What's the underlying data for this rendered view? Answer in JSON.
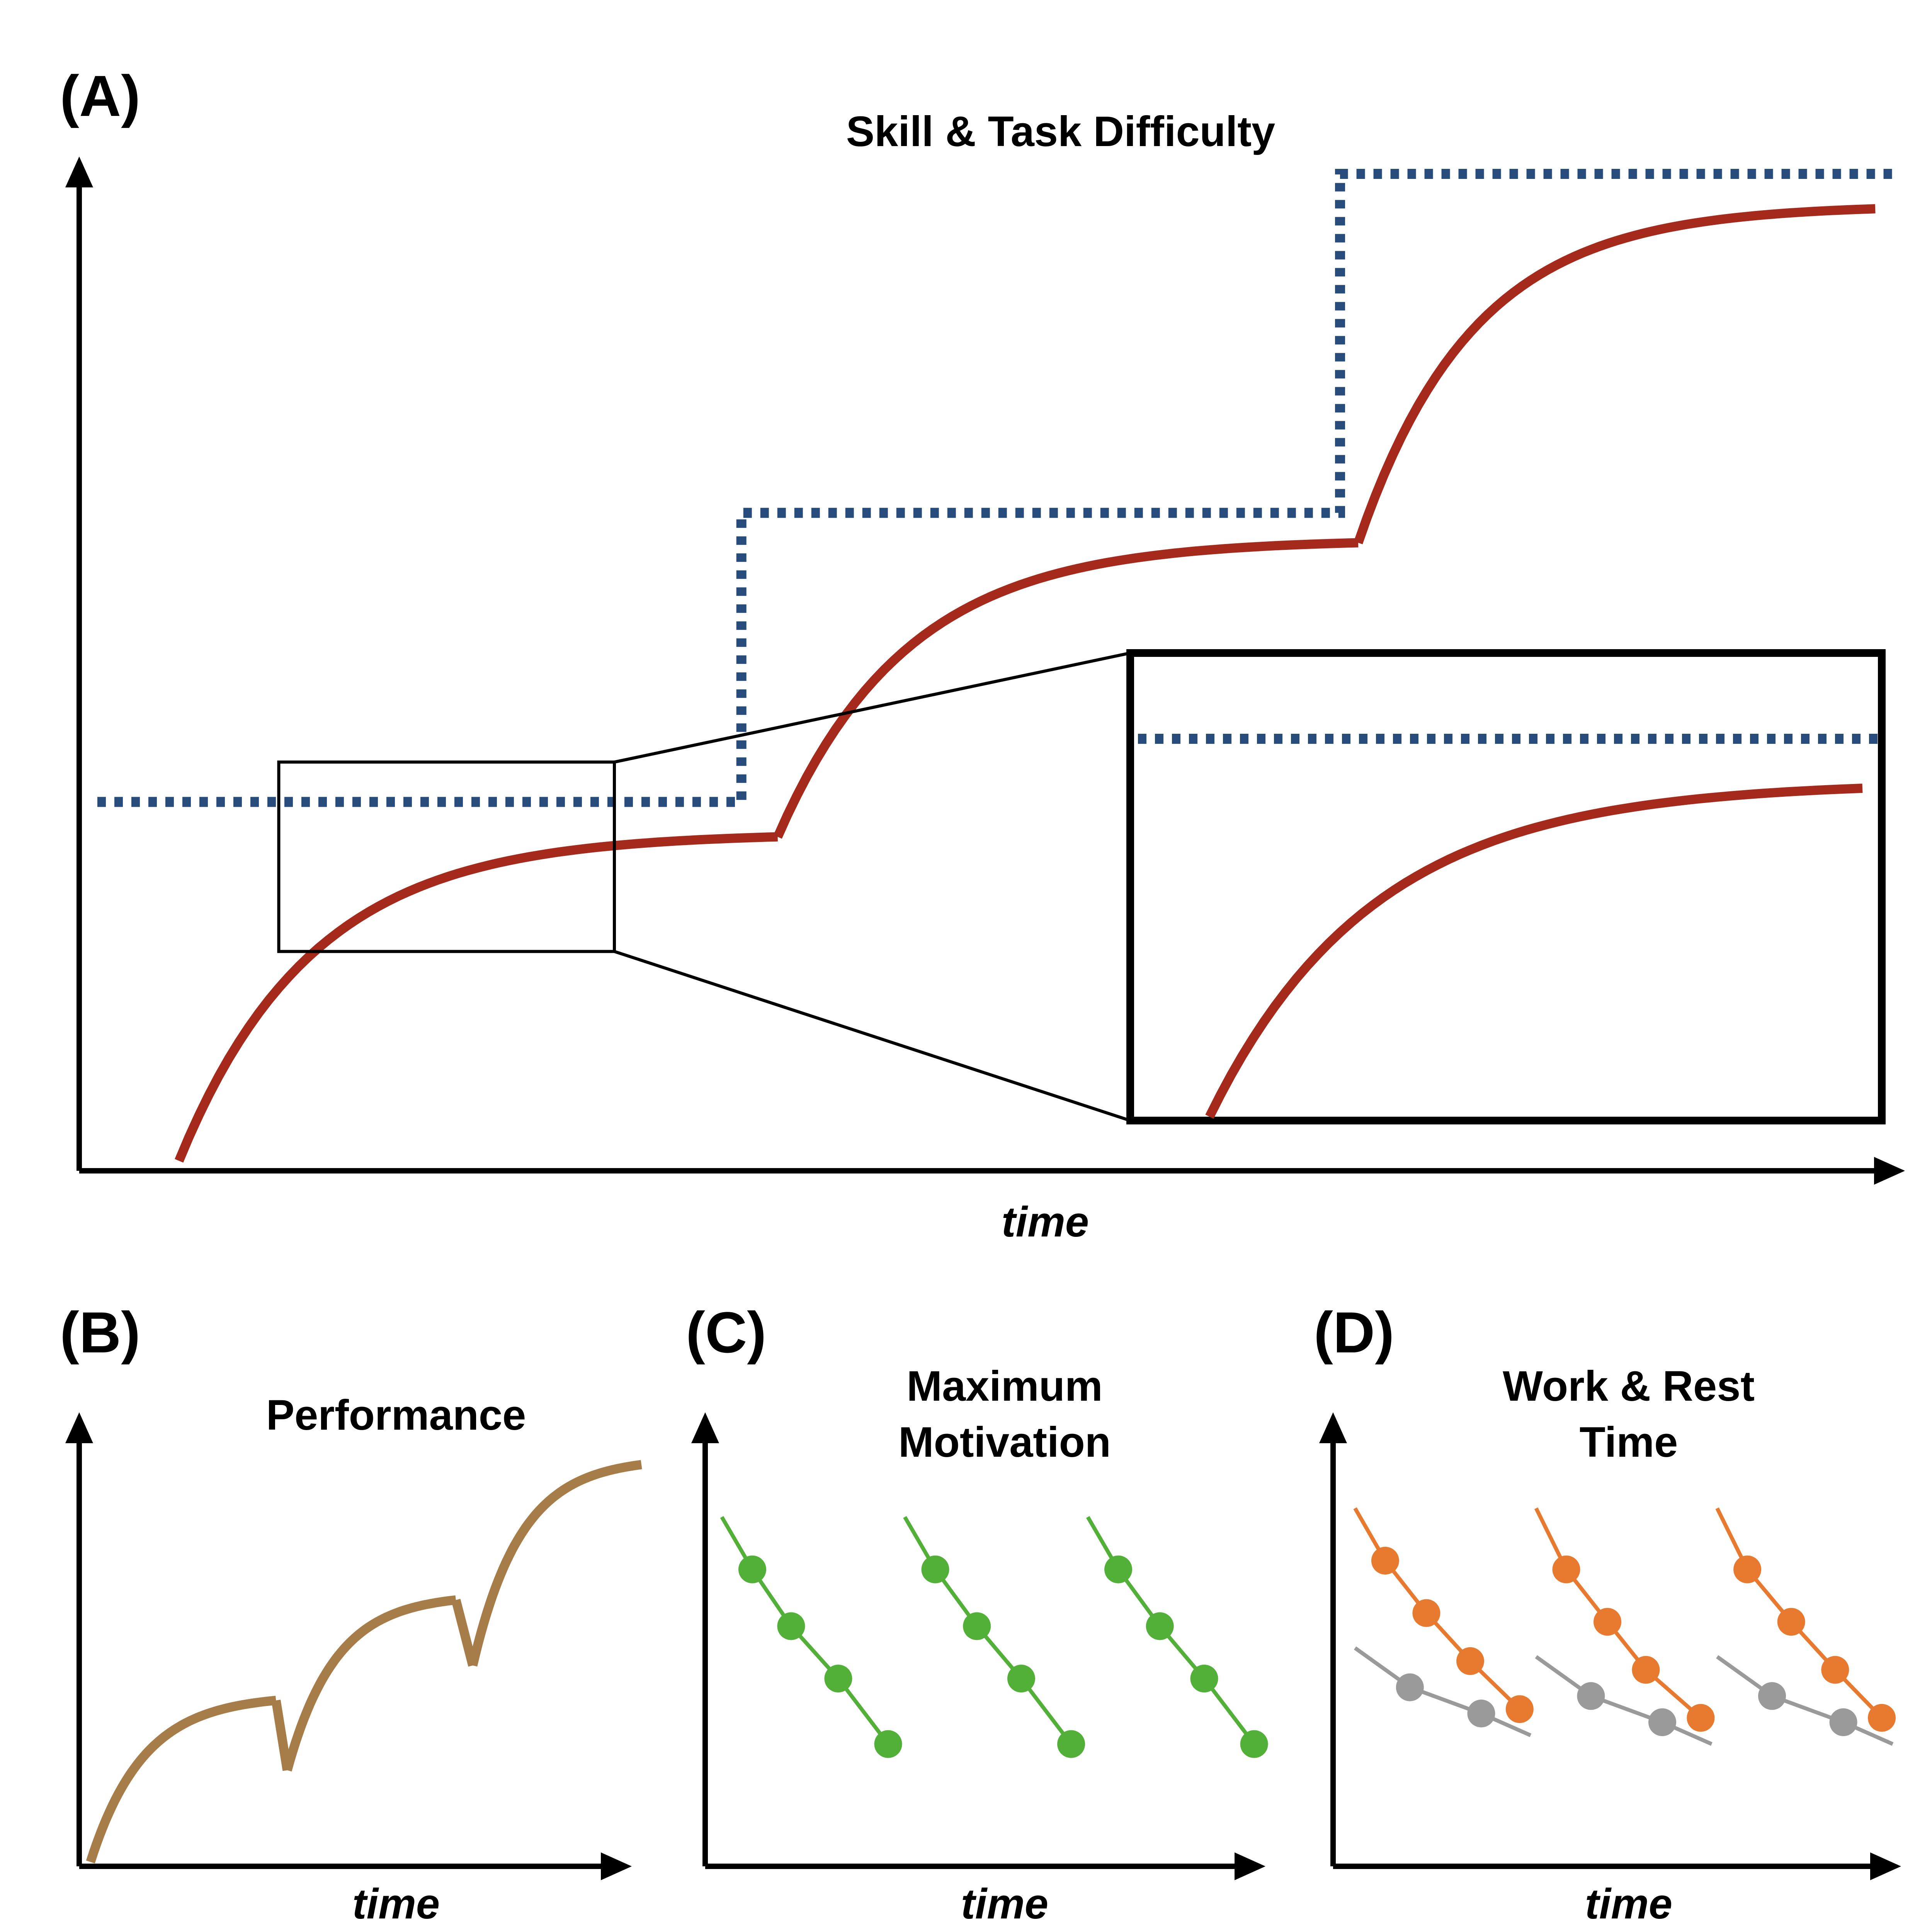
{
  "colors": {
    "skill": "#a52a1c",
    "difficulty": "#274b7a",
    "performance": "#a67c48",
    "motivation": "#52b038",
    "work": "#e87a30",
    "rest": "#9a9a9a",
    "axis": "#000000"
  },
  "chart_data": [
    {
      "panel": "(A)",
      "type": "line",
      "title": "Skill & Task Difficulty",
      "xlabel": "time",
      "ylabel": "",
      "xlim": [
        0,
        100
      ],
      "ylim": [
        0,
        100
      ],
      "series": [
        {
          "name": "Skill",
          "style": "solid",
          "color_key": "skill",
          "segments": [
            {
              "start": [
                5.5,
                1
              ],
              "end": [
                38.5,
                33.5
              ],
              "curve": "concave-saturating"
            },
            {
              "start": [
                38.5,
                33.5
              ],
              "end": [
                70.5,
                63
              ],
              "curve": "concave-saturating"
            },
            {
              "start": [
                70.5,
                63
              ],
              "end": [
                99,
                96.5
              ],
              "curve": "concave-saturating"
            }
          ]
        },
        {
          "name": "Task Difficulty",
          "style": "dotted",
          "color_key": "difficulty",
          "steps": [
            {
              "x_from": 1,
              "x_to": 36.5,
              "y": 37
            },
            {
              "x_from": 36.5,
              "x_to": 69.5,
              "y": 66
            },
            {
              "x_from": 69.5,
              "x_to": 100,
              "y": 100
            }
          ]
        }
      ],
      "zoom_inset": {
        "source_x_range": [
          11,
          29.5
        ],
        "source_y_range": [
          22,
          41
        ],
        "description": "enlarged view of first learning phase"
      }
    },
    {
      "panel": "(B)",
      "type": "line",
      "title": "Performance",
      "xlabel": "time",
      "ylabel": "",
      "xlim": [
        0,
        100
      ],
      "ylim": [
        0,
        100
      ],
      "series": [
        {
          "name": "Performance",
          "color_key": "performance",
          "points": [
            [
              2,
              1
            ],
            [
              11,
              25
            ],
            [
              22,
              33
            ],
            [
              35,
              38
            ],
            [
              37,
              22
            ],
            [
              40,
              33
            ],
            [
              46,
              50
            ],
            [
              58,
              59
            ],
            [
              67,
              61
            ],
            [
              70,
              46
            ],
            [
              73,
              63
            ],
            [
              80,
              80
            ],
            [
              92,
              90
            ],
            [
              100,
              92
            ]
          ]
        }
      ]
    },
    {
      "panel": "(C)",
      "type": "line",
      "title": "Maximum\nMotivation",
      "title_lines": [
        "Maximum",
        "Motivation"
      ],
      "xlabel": "time",
      "ylabel": "",
      "xlim": [
        0,
        100
      ],
      "ylim": [
        0,
        100
      ],
      "series": [
        {
          "name": "Maximum Motivation",
          "color_key": "motivation",
          "groups": [
            {
              "line_start": [
                3,
                80
              ],
              "points": [
                [
                  8.5,
                  68
                ],
                [
                  15.5,
                  55
                ],
                [
                  24,
                  43
                ],
                [
                  33,
                  28
                ]
              ]
            },
            {
              "line_start": [
                36,
                80
              ],
              "points": [
                [
                  41.5,
                  68
                ],
                [
                  49,
                  55
                ],
                [
                  57,
                  43
                ],
                [
                  66,
                  28
                ]
              ]
            },
            {
              "line_start": [
                69,
                80
              ],
              "points": [
                [
                  74.5,
                  68
                ],
                [
                  82,
                  55
                ],
                [
                  90,
                  43
                ],
                [
                  99,
                  28
                ]
              ]
            }
          ]
        }
      ]
    },
    {
      "panel": "(D)",
      "type": "line",
      "title": "Work & Rest\nTime",
      "title_lines": [
        "Work & Rest",
        "Time"
      ],
      "xlabel": "time",
      "ylabel": "",
      "xlim": [
        0,
        100
      ],
      "ylim": [
        0,
        100
      ],
      "series": [
        {
          "name": "Work",
          "color_key": "work",
          "groups": [
            {
              "line_start": [
                4,
                82
              ],
              "points": [
                [
                  9.5,
                  70
                ],
                [
                  17,
                  58
                ],
                [
                  25,
                  47
                ],
                [
                  34,
                  36
                ]
              ]
            },
            {
              "line_start": [
                37,
                82
              ],
              "points": [
                [
                  42.5,
                  68
                ],
                [
                  50,
                  56
                ],
                [
                  57,
                  45
                ],
                [
                  67,
                  34
                ]
              ]
            },
            {
              "line_start": [
                70,
                82
              ],
              "points": [
                [
                  75.5,
                  68
                ],
                [
                  83.5,
                  56
                ],
                [
                  91.5,
                  45
                ],
                [
                  100,
                  34
                ]
              ]
            }
          ]
        },
        {
          "name": "Rest",
          "color_key": "rest",
          "groups": [
            {
              "line_start": [
                4,
                50
              ],
              "line_end": [
                36,
                30
              ],
              "points": [
                [
                  14,
                  41
                ],
                [
                  27,
                  35
                ]
              ]
            },
            {
              "line_start": [
                37,
                48
              ],
              "line_end": [
                69,
                28
              ],
              "points": [
                [
                  47,
                  39
                ],
                [
                  60,
                  33
                ]
              ]
            },
            {
              "line_start": [
                70,
                48
              ],
              "line_end": [
                102,
                28
              ],
              "points": [
                [
                  80,
                  39
                ],
                [
                  93,
                  33
                ]
              ]
            }
          ]
        }
      ]
    }
  ]
}
